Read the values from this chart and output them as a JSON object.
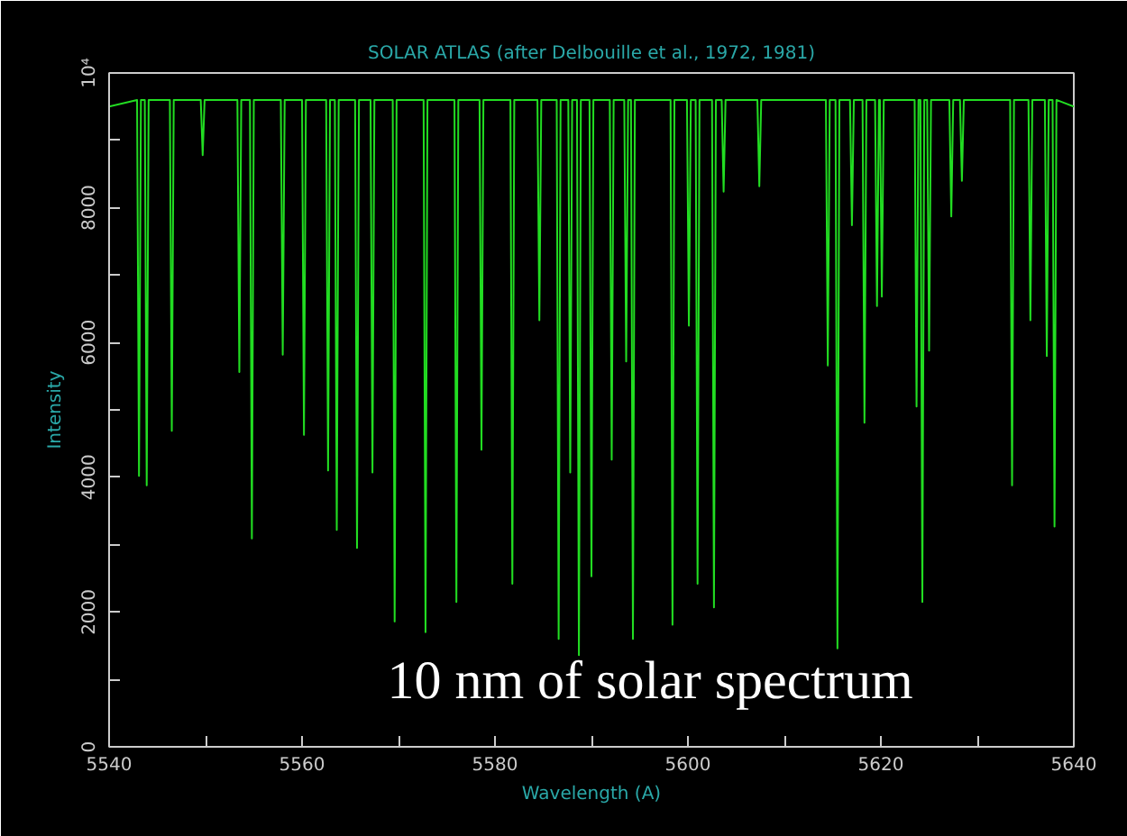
{
  "chart_data": {
    "type": "line",
    "title": "SOLAR ATLAS (after Delbouille et al., 1972, 1981)",
    "xlabel": "Wavelength (A)",
    "ylabel": "Intensity",
    "annotations": [
      "10 nm of solar spectrum"
    ],
    "xlim": [
      5540,
      5640
    ],
    "ylim": [
      0,
      10000
    ],
    "xticks": [
      5540,
      {
        "value": 5550,
        "label": null
      },
      5560,
      {
        "value": 5570,
        "label": null
      },
      5580,
      {
        "value": 5590,
        "label": null
      },
      5600,
      {
        "value": 5610,
        "label": null
      },
      5620,
      {
        "value": 5630,
        "label": null
      },
      5640
    ],
    "yticks": [
      0,
      {
        "value": 1000,
        "label": null
      },
      2000,
      {
        "value": 3000,
        "label": null
      },
      4000,
      {
        "value": 5000,
        "label": null
      },
      6000,
      {
        "value": 7000,
        "label": null
      },
      8000,
      {
        "value": 9000,
        "label": null
      },
      {
        "value": 10000,
        "label": "10⁴"
      }
    ],
    "grid": false,
    "marker": "none",
    "line_style": "solid",
    "series": [
      {
        "color": "#22dd22",
        "x": [
          5540,
          5542.9,
          5543.1,
          5543.3,
          5543.7,
          5543.9,
          5544.1,
          5546.3,
          5546.5,
          5546.7,
          5549.5,
          5549.7,
          5549.9,
          5553.3,
          5553.5,
          5553.7,
          5554.6,
          5554.8,
          5555.0,
          5557.8,
          5558.0,
          5558.2,
          5560.0,
          5560.2,
          5560.4,
          5562.5,
          5562.7,
          5562.9,
          5563.4,
          5563.6,
          5563.8,
          5565.5,
          5565.7,
          5565.9,
          5567.1,
          5567.3,
          5567.5,
          5569.4,
          5569.6,
          5569.8,
          5572.6,
          5572.8,
          5573.0,
          5575.8,
          5576.0,
          5576.2,
          5578.4,
          5578.6,
          5578.8,
          5581.6,
          5581.8,
          5582.0,
          5584.4,
          5584.6,
          5584.8,
          5586.4,
          5586.6,
          5586.8,
          5587.6,
          5587.8,
          5588.0,
          5588.5,
          5588.7,
          5588.9,
          5589.8,
          5590.0,
          5590.2,
          5591.9,
          5592.1,
          5592.3,
          5593.4,
          5593.6,
          5593.8,
          5594.1,
          5594.3,
          5594.5,
          5598.2,
          5598.4,
          5598.6,
          5599.9,
          5600.1,
          5600.3,
          5600.8,
          5601.0,
          5601.2,
          5602.5,
          5602.7,
          5602.9,
          5603.5,
          5603.7,
          5603.9,
          5607.2,
          5607.4,
          5607.6,
          5614.3,
          5614.5,
          5614.7,
          5615.3,
          5615.5,
          5615.7,
          5616.8,
          5617.0,
          5617.2,
          5618.1,
          5618.3,
          5618.5,
          5619.4,
          5619.6,
          5619.8,
          5619.9,
          5620.1,
          5620.3,
          5623.5,
          5623.7,
          5623.9,
          5624.1,
          5624.3,
          5624.5,
          5624.8,
          5625.0,
          5625.2,
          5627.1,
          5627.3,
          5627.5,
          5628.2,
          5628.4,
          5628.6,
          5633.4,
          5633.6,
          5633.8,
          5635.3,
          5635.5,
          5635.7,
          5637.0,
          5637.2,
          5637.4,
          5637.8,
          5638.0,
          5638.2,
          5640
        ],
        "values": [
          9500,
          9600,
          4020,
          9600,
          9600,
          3880,
          9600,
          9600,
          4690,
          9600,
          9600,
          8780,
          9600,
          9600,
          5560,
          9600,
          9600,
          3090,
          9600,
          9600,
          5820,
          9600,
          9600,
          4630,
          9600,
          9600,
          4100,
          9600,
          9600,
          3220,
          9600,
          9600,
          2950,
          9600,
          9600,
          4070,
          9600,
          9600,
          1860,
          9600,
          9600,
          1700,
          9600,
          9600,
          2150,
          9600,
          9600,
          4410,
          9600,
          9600,
          2420,
          9600,
          9600,
          6330,
          9600,
          9600,
          1600,
          9600,
          9600,
          4070,
          9600,
          9600,
          1360,
          9600,
          9600,
          2530,
          9600,
          9600,
          4260,
          9600,
          9600,
          5720,
          9600,
          9600,
          1600,
          9600,
          9600,
          1810,
          9600,
          9600,
          6250,
          9600,
          9600,
          2420,
          9600,
          9600,
          2070,
          9600,
          9600,
          8240,
          9600,
          9600,
          8320,
          9600,
          9600,
          5660,
          9600,
          9600,
          1460,
          9600,
          9600,
          7740,
          9600,
          9600,
          4810,
          9600,
          9600,
          6540,
          9600,
          9600,
          6680,
          9600,
          9600,
          5050,
          9600,
          9600,
          2150,
          9600,
          9600,
          5880,
          9600,
          9600,
          7870,
          9600,
          9600,
          8400,
          9600,
          9600,
          3880,
          9600,
          9600,
          6330,
          9600,
          9600,
          5800,
          9600,
          9600,
          3270,
          9600,
          9500
        ]
      }
    ]
  }
}
